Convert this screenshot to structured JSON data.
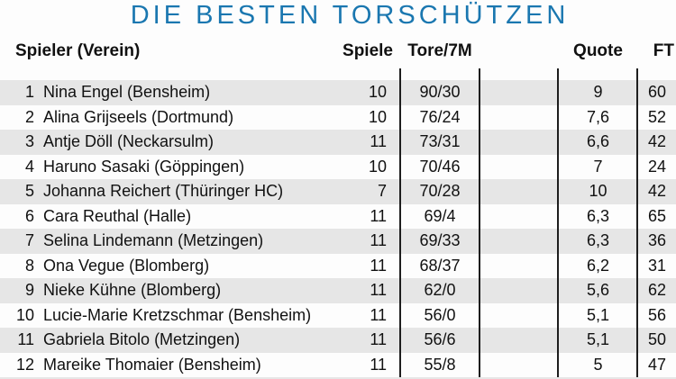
{
  "title": "DIE BESTEN TORSCHÜTZEN",
  "colors": {
    "title_blue": "#1a77b0",
    "row_shade": "#e6e6e6",
    "divider": "#1e1e1e"
  },
  "table": {
    "headers": {
      "player": "Spieler (Verein)",
      "games": "Spiele",
      "goals": "Tore/7M",
      "quote": "Quote",
      "ft": "FT"
    },
    "rows": [
      {
        "rank": "1",
        "player": "Nina Engel (Bensheim)",
        "games": "10",
        "goals": "90/30",
        "quote": "9",
        "ft": "60"
      },
      {
        "rank": "2",
        "player": "Alina Grijseels (Dortmund)",
        "games": "10",
        "goals": "76/24",
        "quote": "7,6",
        "ft": "52"
      },
      {
        "rank": "3",
        "player": "Antje Döll (Neckarsulm)",
        "games": "11",
        "goals": "73/31",
        "quote": "6,6",
        "ft": "42"
      },
      {
        "rank": "4",
        "player": "Haruno Sasaki (Göppingen)",
        "games": "10",
        "goals": "70/46",
        "quote": "7",
        "ft": "24"
      },
      {
        "rank": "5",
        "player": "Johanna Reichert (Thüringer HC)",
        "games": "7",
        "goals": "70/28",
        "quote": "10",
        "ft": "42"
      },
      {
        "rank": "6",
        "player": "Cara Reuthal (Halle)",
        "games": "11",
        "goals": "69/4",
        "quote": "6,3",
        "ft": "65"
      },
      {
        "rank": "7",
        "player": "Selina Lindemann (Metzingen)",
        "games": "11",
        "goals": "69/33",
        "quote": "6,3",
        "ft": "36"
      },
      {
        "rank": "8",
        "player": "Ona Vegue (Blomberg)",
        "games": "11",
        "goals": "68/37",
        "quote": "6,2",
        "ft": "31"
      },
      {
        "rank": "9",
        "player": "Nieke Kühne (Blomberg)",
        "games": "11",
        "goals": "62/0",
        "quote": "5,6",
        "ft": "62"
      },
      {
        "rank": "10",
        "player": "Lucie-Marie Kretzschmar (Bensheim)",
        "games": "11",
        "goals": "56/0",
        "quote": "5,1",
        "ft": "56"
      },
      {
        "rank": "11",
        "player": "Gabriela Bitolo (Metzingen)",
        "games": "11",
        "goals": "56/6",
        "quote": "5,1",
        "ft": "50"
      },
      {
        "rank": "12",
        "player": "Mareike Thomaier (Bensheim)",
        "games": "11",
        "goals": "55/8",
        "quote": "5",
        "ft": "47"
      }
    ]
  }
}
